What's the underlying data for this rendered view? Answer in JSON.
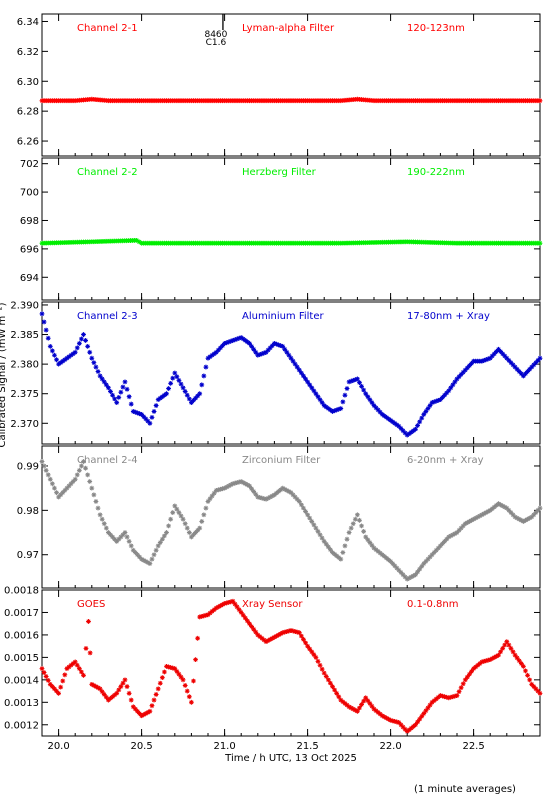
{
  "figure": {
    "ylabel": "Calibrated Signal / (mW m⁻²)",
    "xlabel": "Time / h UTC, 13 Oct 2025",
    "footnote": "(1 minute averages)",
    "flare": {
      "time": 20.99,
      "class": "C1.6",
      "id": "8460"
    }
  },
  "chart_data": [
    {
      "type": "scatter",
      "channel": "Channel 2-1",
      "filter": "Lyman-alpha Filter",
      "band": "120-123nm",
      "color": "#ff0000",
      "xlim": [
        19.9,
        22.9
      ],
      "ylim": [
        6.25,
        6.345
      ],
      "yticks": [
        6.26,
        6.28,
        6.3,
        6.32,
        6.34
      ],
      "ydecimals": 2,
      "x": [
        19.9,
        20.1,
        20.2,
        20.3,
        20.5,
        20.7,
        20.9,
        21.1,
        21.3,
        21.5,
        21.7,
        21.8,
        21.9,
        22.1,
        22.3,
        22.5,
        22.7,
        22.9
      ],
      "y": [
        6.287,
        6.287,
        6.288,
        6.287,
        6.287,
        6.287,
        6.287,
        6.287,
        6.287,
        6.287,
        6.287,
        6.288,
        6.287,
        6.287,
        6.287,
        6.287,
        6.287,
        6.287
      ]
    },
    {
      "type": "scatter",
      "channel": "Channel 2-2",
      "filter": "Herzberg Filter",
      "band": "190-222nm",
      "color": "#00ee00",
      "xlim": [
        19.9,
        22.9
      ],
      "ylim": [
        692.4,
        702.4
      ],
      "yticks": [
        694,
        696,
        698,
        700,
        702
      ],
      "ydecimals": 0,
      "x": [
        19.9,
        20.2,
        20.47,
        20.5,
        20.8,
        21.1,
        21.4,
        21.7,
        22.1,
        22.4,
        22.7,
        22.9
      ],
      "y": [
        696.4,
        696.5,
        696.6,
        696.4,
        696.4,
        696.4,
        696.4,
        696.4,
        696.5,
        696.4,
        696.4,
        696.4
      ]
    },
    {
      "type": "scatter",
      "channel": "Channel 2-3",
      "filter": "Aluminium Filter",
      "band": "17-80nm + Xray",
      "color": "#0000cc",
      "xlim": [
        19.9,
        22.9
      ],
      "ylim": [
        2.3665,
        2.3905
      ],
      "yticks": [
        2.37,
        2.375,
        2.38,
        2.385,
        2.39
      ],
      "ydecimals": 3,
      "x": [
        19.9,
        19.95,
        20.0,
        20.05,
        20.1,
        20.15,
        20.2,
        20.25,
        20.3,
        20.35,
        20.4,
        20.45,
        20.5,
        20.55,
        20.6,
        20.65,
        20.7,
        20.75,
        20.8,
        20.85,
        20.9,
        20.95,
        21.0,
        21.05,
        21.1,
        21.15,
        21.2,
        21.25,
        21.3,
        21.35,
        21.4,
        21.45,
        21.5,
        21.55,
        21.6,
        21.65,
        21.7,
        21.75,
        21.8,
        21.85,
        21.9,
        21.95,
        22.0,
        22.05,
        22.1,
        22.15,
        22.2,
        22.25,
        22.3,
        22.35,
        22.4,
        22.45,
        22.5,
        22.55,
        22.6,
        22.65,
        22.7,
        22.75,
        22.8,
        22.85,
        22.9
      ],
      "y": [
        2.3885,
        2.383,
        2.38,
        2.381,
        2.382,
        2.385,
        2.381,
        2.378,
        2.376,
        2.3735,
        2.377,
        2.372,
        2.3715,
        2.37,
        2.374,
        2.375,
        2.3785,
        2.376,
        2.3735,
        2.375,
        2.381,
        2.382,
        2.3835,
        2.384,
        2.3845,
        2.3835,
        2.3815,
        2.382,
        2.3835,
        2.383,
        2.381,
        2.379,
        2.377,
        2.375,
        2.373,
        2.372,
        2.3725,
        2.377,
        2.3775,
        2.375,
        2.373,
        2.3715,
        2.3705,
        2.3695,
        2.368,
        2.369,
        2.3715,
        2.3735,
        2.374,
        2.3755,
        2.3775,
        2.379,
        2.3805,
        2.3805,
        2.381,
        2.3825,
        2.381,
        2.3795,
        2.378,
        2.3795,
        2.381
      ]
    },
    {
      "type": "scatter",
      "channel": "Channel 2-4",
      "filter": "Zirconium Filter",
      "band": "6-20nm + Xray",
      "color": "#888888",
      "xlim": [
        19.9,
        22.9
      ],
      "ylim": [
        0.9625,
        0.9945
      ],
      "yticks": [
        0.97,
        0.98,
        0.99
      ],
      "ydecimals": 2,
      "x": [
        19.9,
        19.95,
        20.0,
        20.05,
        20.1,
        20.15,
        20.2,
        20.25,
        20.3,
        20.35,
        20.4,
        20.45,
        20.5,
        20.55,
        20.6,
        20.65,
        20.7,
        20.75,
        20.8,
        20.85,
        20.9,
        20.95,
        21.0,
        21.05,
        21.1,
        21.15,
        21.2,
        21.25,
        21.3,
        21.35,
        21.4,
        21.45,
        21.5,
        21.55,
        21.6,
        21.65,
        21.7,
        21.75,
        21.8,
        21.85,
        21.9,
        21.95,
        22.0,
        22.05,
        22.1,
        22.15,
        22.2,
        22.25,
        22.3,
        22.35,
        22.4,
        22.45,
        22.5,
        22.55,
        22.6,
        22.65,
        22.7,
        22.75,
        22.8,
        22.85,
        22.9
      ],
      "y": [
        0.991,
        0.987,
        0.983,
        0.985,
        0.987,
        0.991,
        0.985,
        0.979,
        0.975,
        0.973,
        0.975,
        0.971,
        0.969,
        0.968,
        0.972,
        0.975,
        0.981,
        0.978,
        0.974,
        0.976,
        0.982,
        0.9845,
        0.985,
        0.986,
        0.9865,
        0.9855,
        0.983,
        0.9825,
        0.9835,
        0.985,
        0.984,
        0.982,
        0.979,
        0.976,
        0.973,
        0.9705,
        0.969,
        0.975,
        0.979,
        0.974,
        0.9715,
        0.97,
        0.9685,
        0.9665,
        0.9645,
        0.9655,
        0.968,
        0.97,
        0.972,
        0.974,
        0.975,
        0.977,
        0.978,
        0.979,
        0.98,
        0.9815,
        0.9805,
        0.9785,
        0.9775,
        0.9785,
        0.9805
      ]
    },
    {
      "type": "scatter",
      "channel": "GOES",
      "filter": "Xray Sensor",
      "band": "0.1-0.8nm",
      "color": "#ee0000",
      "xlim": [
        19.9,
        22.9
      ],
      "ylim": [
        0.00115,
        0.0018
      ],
      "yticks": [
        0.0012,
        0.0013,
        0.0014,
        0.0015,
        0.0016,
        0.0017,
        0.0018
      ],
      "ydecimals": 4,
      "x": [
        19.9,
        19.95,
        20.0,
        20.05,
        20.1,
        20.15,
        20.18,
        20.2,
        20.25,
        20.3,
        20.35,
        20.4,
        20.45,
        20.5,
        20.55,
        20.6,
        20.65,
        20.7,
        20.75,
        20.8,
        20.85,
        20.9,
        20.95,
        21.0,
        21.05,
        21.1,
        21.15,
        21.2,
        21.25,
        21.3,
        21.35,
        21.4,
        21.45,
        21.5,
        21.55,
        21.6,
        21.65,
        21.7,
        21.75,
        21.8,
        21.85,
        21.9,
        21.95,
        22.0,
        22.05,
        22.1,
        22.15,
        22.2,
        22.25,
        22.3,
        22.35,
        22.4,
        22.45,
        22.5,
        22.55,
        22.6,
        22.65,
        22.7,
        22.75,
        22.8,
        22.85,
        22.9
      ],
      "y": [
        0.00145,
        0.00138,
        0.00134,
        0.00145,
        0.00148,
        0.00142,
        0.00166,
        0.00138,
        0.00136,
        0.00131,
        0.00134,
        0.0014,
        0.00128,
        0.00124,
        0.00126,
        0.00136,
        0.00146,
        0.00145,
        0.0014,
        0.0013,
        0.00168,
        0.00169,
        0.00172,
        0.00174,
        0.00175,
        0.0017,
        0.00165,
        0.0016,
        0.00157,
        0.00159,
        0.00161,
        0.00162,
        0.00161,
        0.00155,
        0.0015,
        0.00143,
        0.00137,
        0.00131,
        0.00128,
        0.00126,
        0.00132,
        0.00127,
        0.00124,
        0.00122,
        0.00121,
        0.00117,
        0.0012,
        0.00125,
        0.0013,
        0.00133,
        0.00132,
        0.00133,
        0.0014,
        0.00145,
        0.00148,
        0.00149,
        0.00151,
        0.00157,
        0.00151,
        0.00146,
        0.00138,
        0.00134
      ]
    }
  ]
}
